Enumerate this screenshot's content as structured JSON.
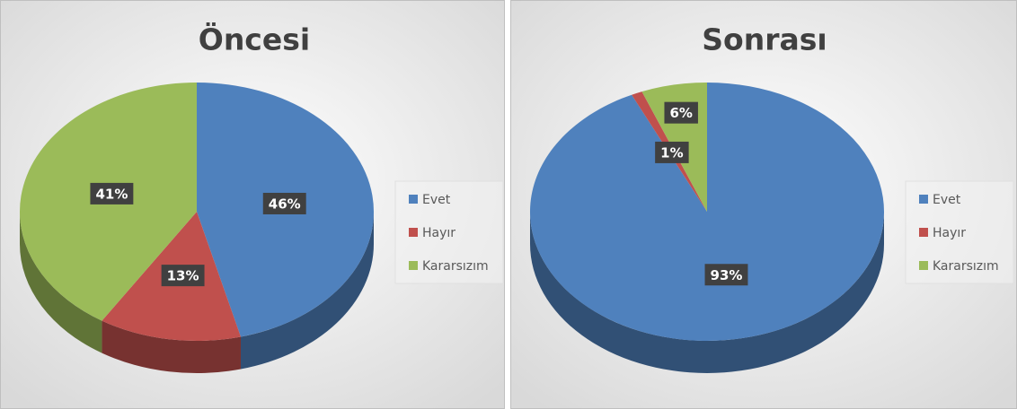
{
  "chart_data": [
    {
      "type": "pie",
      "title": "Öncesi",
      "categories": [
        "Evet",
        "Hayır",
        "Kararsızım"
      ],
      "values": [
        46,
        13,
        41
      ],
      "value_labels": [
        "46%",
        "13%",
        "41%"
      ],
      "colors": [
        "#4f81bd",
        "#c0504d",
        "#9bbb59"
      ],
      "legend": "right"
    },
    {
      "type": "pie",
      "title": "Sonrası",
      "categories": [
        "Evet",
        "Hayır",
        "Kararsızım"
      ],
      "values": [
        93,
        1,
        6
      ],
      "value_labels": [
        "93%",
        "1%",
        "6%"
      ],
      "colors": [
        "#4f81bd",
        "#c0504d",
        "#9bbb59"
      ],
      "legend": "right"
    }
  ]
}
